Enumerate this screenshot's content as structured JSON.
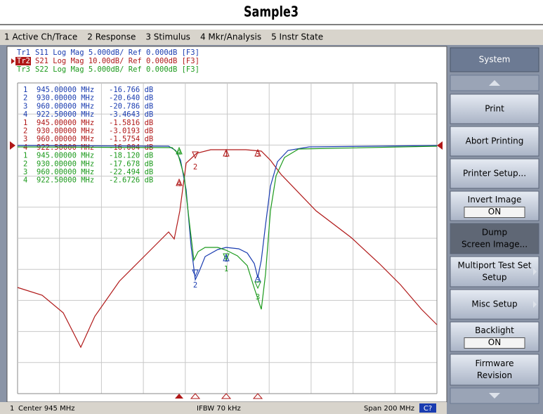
{
  "header": {
    "title": "Sample3"
  },
  "menu": [
    "1 Active Ch/Trace",
    "2 Response",
    "3 Stimulus",
    "4 Mkr/Analysis",
    "5 Instr State"
  ],
  "traces": [
    {
      "id": "Tr1",
      "text": "S11 Log Mag 5.000dB/ Ref 0.000dB [F3]"
    },
    {
      "id": "Tr2",
      "text": "S21 Log Mag 10.00dB/ Ref 0.000dB [F3]"
    },
    {
      "id": "Tr3",
      "text": "S22 Log Mag 5.000dB/ Ref 0.000dB [F3]"
    }
  ],
  "markers": [
    {
      "num": "1",
      "freq": "945.00000 MHz",
      "value": "-16.766 dB"
    },
    {
      "num": "2",
      "freq": "930.00000 MHz",
      "value": "-20.640 dB"
    },
    {
      "num": "3",
      "freq": "960.00000 MHz",
      "value": "-20.786 dB"
    },
    {
      "num": "4",
      "freq": "922.50000 MHz",
      "value": "-3.4643 dB"
    },
    {
      "num": "1",
      "freq": "945.00000 MHz",
      "value": "-1.5816 dB"
    },
    {
      "num": "2",
      "freq": "930.00000 MHz",
      "value": "-3.0193 dB"
    },
    {
      "num": "3",
      "freq": "960.00000 MHz",
      "value": "-1.5754 dB"
    },
    {
      "num": "4",
      "freq": "922.50000 MHz",
      "value": "-16.004 dB"
    },
    {
      "num": "1",
      "freq": "945.00000 MHz",
      "value": "-18.120 dB"
    },
    {
      "num": "2",
      "freq": "930.00000 MHz",
      "value": "-17.678 dB"
    },
    {
      "num": "3",
      "freq": "960.00000 MHz",
      "value": "-22.494 dB"
    },
    {
      "num": "4",
      "freq": "922.50000 MHz",
      "value": "-2.6726 dB"
    }
  ],
  "softkeys": {
    "header": "System",
    "print": "Print",
    "abort": "Abort Printing",
    "printer_setup": "Printer Setup...",
    "invert": {
      "label": "Invert Image",
      "state": "ON"
    },
    "dump": [
      "Dump",
      "Screen Image..."
    ],
    "multiport": [
      "Multiport Test Set",
      "Setup"
    ],
    "misc": "Misc Setup",
    "backlight": {
      "label": "Backlight",
      "state": "ON"
    },
    "firmware": [
      "Firmware",
      "Revision"
    ]
  },
  "status": {
    "channel": "1",
    "center": "Center 945 MHz",
    "ifbw": "IFBW 70 kHz",
    "span": "Span 200 MHz",
    "cal": "C?"
  }
}
